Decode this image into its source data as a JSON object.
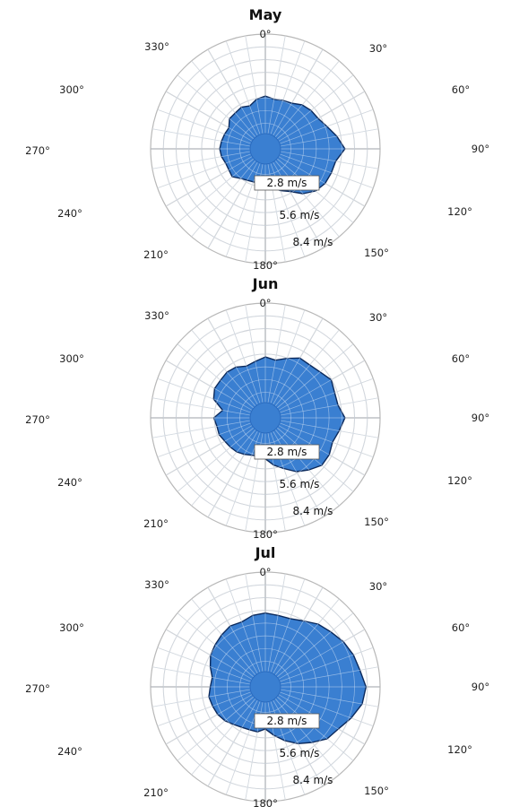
{
  "chart_data": [
    {
      "type": "polar-area",
      "title": "May",
      "angle_labels": [
        "0°",
        "30°",
        "60°",
        "90°",
        "120°",
        "150°",
        "180°",
        "210°",
        "240°",
        "270°",
        "300°",
        "330°"
      ],
      "radial_labels": [
        "2.8 m/s",
        "5.6 m/s",
        "8.4 m/s"
      ],
      "rmax": 9.8,
      "directions_deg": [
        0,
        10,
        20,
        30,
        40,
        50,
        60,
        70,
        80,
        90,
        100,
        110,
        120,
        130,
        140,
        150,
        160,
        170,
        180,
        190,
        200,
        210,
        220,
        230,
        240,
        250,
        260,
        270,
        280,
        290,
        300,
        310,
        320,
        330,
        340,
        350
      ],
      "speed_ms": [
        4.5,
        4.3,
        4.4,
        4.5,
        4.9,
        5.1,
        5.2,
        5.6,
        6.2,
        6.8,
        6.1,
        6.0,
        5.9,
        5.6,
        5.0,
        4.2,
        3.8,
        3.3,
        3.0,
        3.0,
        3.0,
        3.1,
        3.3,
        3.7,
        3.6,
        3.6,
        3.8,
        3.9,
        3.8,
        3.7,
        3.6,
        4.0,
        4.0,
        4.1,
        3.9,
        4.3
      ]
    },
    {
      "type": "polar-area",
      "title": "Jun",
      "angle_labels": [
        "0°",
        "30°",
        "60°",
        "90°",
        "120°",
        "150°",
        "180°",
        "210°",
        "240°",
        "270°",
        "300°",
        "330°"
      ],
      "radial_labels": [
        "2.8 m/s",
        "5.6 m/s",
        "8.4 m/s"
      ],
      "rmax": 9.8,
      "directions_deg": [
        0,
        10,
        20,
        30,
        40,
        50,
        60,
        70,
        80,
        90,
        100,
        110,
        120,
        130,
        140,
        150,
        160,
        170,
        180,
        190,
        200,
        210,
        220,
        230,
        240,
        250,
        260,
        270,
        280,
        290,
        300,
        310,
        320,
        330,
        340,
        350
      ],
      "speed_ms": [
        5.2,
        5.0,
        5.4,
        5.9,
        5.9,
        6.1,
        6.5,
        6.3,
        6.3,
        6.8,
        6.4,
        6.1,
        6.3,
        6.3,
        5.8,
        5.3,
        4.6,
        4.1,
        3.5,
        3.3,
        3.4,
        3.6,
        3.8,
        3.9,
        4.0,
        4.2,
        4.2,
        4.4,
        3.7,
        4.7,
        5.0,
        5.0,
        5.1,
        5.0,
        4.7,
        4.9
      ]
    },
    {
      "type": "polar-area",
      "title": "Jul",
      "angle_labels": [
        "0°",
        "30°",
        "60°",
        "90°",
        "120°",
        "150°",
        "180°",
        "210°",
        "240°",
        "270°",
        "300°",
        "330°"
      ],
      "radial_labels": [
        "2.8 m/s",
        "5.6 m/s",
        "8.4 m/s"
      ],
      "rmax": 9.8,
      "directions_deg": [
        0,
        10,
        20,
        30,
        40,
        50,
        60,
        70,
        80,
        90,
        100,
        110,
        120,
        130,
        140,
        150,
        160,
        170,
        180,
        190,
        200,
        210,
        220,
        230,
        240,
        250,
        260,
        270,
        280,
        290,
        300,
        310,
        320,
        330,
        340,
        350
      ],
      "speed_ms": [
        6.3,
        6.2,
        6.2,
        6.5,
        7.0,
        7.3,
        7.7,
        8.0,
        8.2,
        8.6,
        8.4,
        7.8,
        7.2,
        6.9,
        6.2,
        5.6,
        4.9,
        4.2,
        3.6,
        3.9,
        3.9,
        4.0,
        4.2,
        4.5,
        4.7,
        4.8,
        4.9,
        4.7,
        4.6,
        5.0,
        5.4,
        5.6,
        5.8,
        6.0,
        5.9,
        6.2
      ]
    }
  ],
  "colors": {
    "fill": "#3a7fd1",
    "edge": "#0c2a5c",
    "grid": "#c9c9c9",
    "grid_on_fill": "#dbe8f7"
  }
}
